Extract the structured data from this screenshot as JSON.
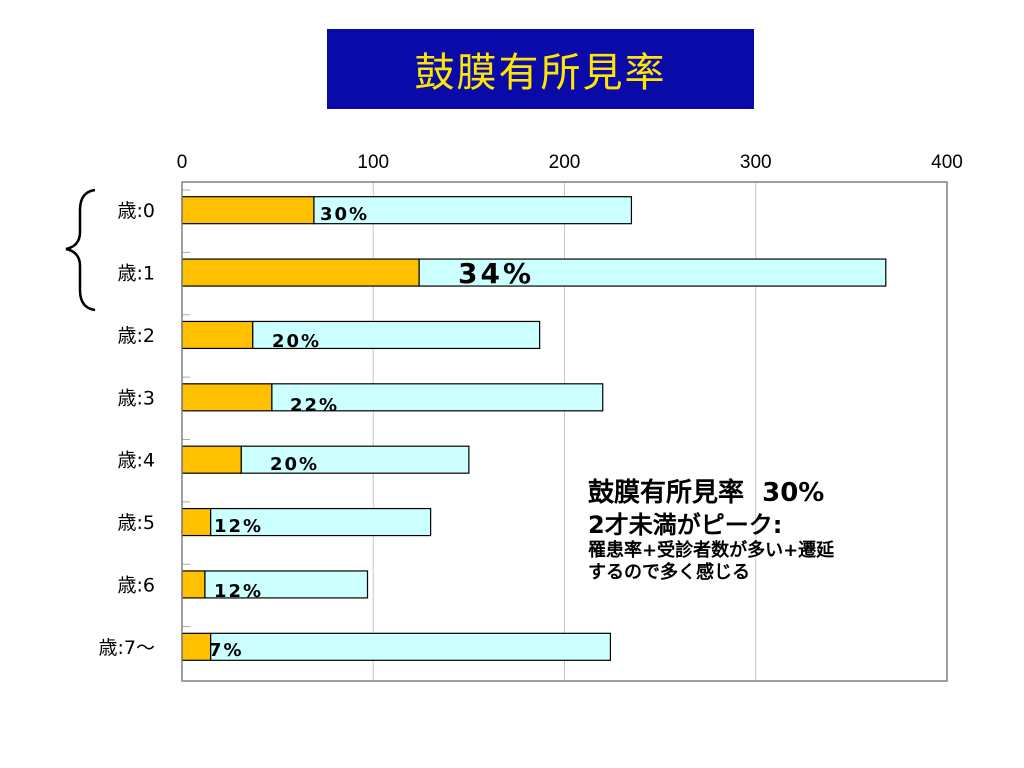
{
  "slide_title": "鼓膜有所見率",
  "chart_data": {
    "type": "bar",
    "orientation": "horizontal",
    "stacked": true,
    "categories": [
      "歳:0",
      "歳:1",
      "歳:2",
      "歳:3",
      "歳:4",
      "歳:5",
      "歳:6",
      "歳:7〜"
    ],
    "series": [
      {
        "values": [
          69,
          124,
          37,
          47,
          31,
          15,
          12,
          15
        ],
        "color": "#ffc000"
      },
      {
        "values": [
          166,
          244,
          150,
          173,
          119,
          115,
          85,
          209
        ],
        "color": "#ccffff"
      }
    ],
    "bar_labels": [
      "30%",
      "34%",
      "20%",
      "22%",
      "20%",
      "12%",
      "12%",
      "7%"
    ],
    "xlim": [
      0,
      400
    ],
    "xticks": [
      "0",
      "100",
      "200",
      "300",
      "400"
    ],
    "grid": true,
    "xaxis_position": "top"
  },
  "annotation": {
    "line1": "鼓膜有所見率  30%",
    "line2": "2才未満がピーク:",
    "line3": "罹患率+受診者数が多い+遷延",
    "line4": "するので多く感じる"
  }
}
